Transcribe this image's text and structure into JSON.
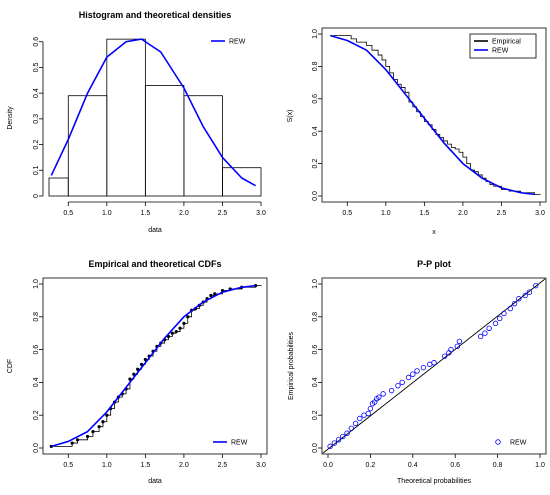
{
  "colors": {
    "theory": "#0000ff",
    "empirical": "#000000",
    "background": "#ffffff"
  },
  "chart_data": [
    {
      "type": "bar",
      "title": "Histogram and theoretical densities",
      "xlabel": "data",
      "ylabel": "Density",
      "xlim": [
        0.25,
        3.0
      ],
      "ylim": [
        0,
        0.63
      ],
      "xticks": [
        "0.5",
        "1.0",
        "1.5",
        "2.0",
        "2.5",
        "3.0"
      ],
      "yticks": [
        "0",
        "0.1",
        "0.2",
        "0.3",
        "0.4",
        "0.5",
        "0.6"
      ],
      "bins": [
        {
          "from": 0.25,
          "to": 0.5,
          "density": 0.07
        },
        {
          "from": 0.5,
          "to": 1.0,
          "density": 0.39
        },
        {
          "from": 1.0,
          "to": 1.5,
          "density": 0.61
        },
        {
          "from": 1.5,
          "to": 2.0,
          "density": 0.43
        },
        {
          "from": 2.0,
          "to": 2.5,
          "density": 0.39
        },
        {
          "from": 2.5,
          "to": 3.0,
          "density": 0.11
        }
      ],
      "series": [
        {
          "name": "REW",
          "x": [
            0.28,
            0.5,
            0.75,
            1.0,
            1.25,
            1.45,
            1.7,
            2.0,
            2.25,
            2.5,
            2.75,
            2.93
          ],
          "y": [
            0.08,
            0.22,
            0.4,
            0.54,
            0.6,
            0.61,
            0.56,
            0.42,
            0.27,
            0.15,
            0.07,
            0.04
          ]
        }
      ],
      "legend": "top-right",
      "legend_entries": [
        {
          "label": "REW",
          "color": "#0000ff"
        }
      ]
    },
    {
      "type": "line",
      "title": "",
      "xlabel": "x",
      "ylabel": "S(x)",
      "xlim": [
        0.25,
        3.0
      ],
      "ylim": [
        0,
        1.0
      ],
      "xticks": [
        "0.5",
        "1.0",
        "1.5",
        "2.0",
        "2.5",
        "3.0"
      ],
      "yticks": [
        "0.0",
        "0.2",
        "0.4",
        "0.6",
        "0.8",
        "1.0"
      ],
      "series": [
        {
          "name": "Empirical",
          "style": "step",
          "x": [
            0.28,
            0.55,
            0.62,
            0.75,
            0.82,
            0.9,
            0.95,
            1.0,
            1.05,
            1.1,
            1.15,
            1.2,
            1.25,
            1.3,
            1.35,
            1.4,
            1.45,
            1.5,
            1.55,
            1.6,
            1.65,
            1.7,
            1.75,
            1.8,
            1.85,
            1.9,
            1.95,
            2.0,
            2.05,
            2.1,
            2.15,
            2.2,
            2.25,
            2.3,
            2.35,
            2.4,
            2.5,
            2.6,
            2.75,
            2.93
          ],
          "y": [
            0.99,
            0.97,
            0.95,
            0.93,
            0.9,
            0.87,
            0.84,
            0.8,
            0.76,
            0.72,
            0.69,
            0.67,
            0.64,
            0.58,
            0.55,
            0.52,
            0.49,
            0.46,
            0.44,
            0.41,
            0.38,
            0.36,
            0.34,
            0.32,
            0.3,
            0.29,
            0.27,
            0.24,
            0.2,
            0.16,
            0.15,
            0.13,
            0.11,
            0.09,
            0.07,
            0.06,
            0.04,
            0.03,
            0.02,
            0.01
          ]
        },
        {
          "name": "REW",
          "style": "line",
          "x": [
            0.28,
            0.5,
            0.75,
            1.0,
            1.25,
            1.5,
            1.75,
            2.0,
            2.25,
            2.5,
            2.75,
            2.93
          ],
          "y": [
            0.99,
            0.96,
            0.9,
            0.78,
            0.63,
            0.48,
            0.33,
            0.2,
            0.11,
            0.05,
            0.02,
            0.01
          ]
        }
      ],
      "legend": "top-right",
      "legend_entries": [
        {
          "label": "Empirical",
          "color": "#000000"
        },
        {
          "label": "REW",
          "color": "#0000ff"
        }
      ]
    },
    {
      "type": "line",
      "title": "Empirical and theoretical CDFs",
      "xlabel": "data",
      "ylabel": "CDF",
      "xlim": [
        0.25,
        3.0
      ],
      "ylim": [
        0,
        1.0
      ],
      "xticks": [
        "0.5",
        "1.0",
        "1.5",
        "2.0",
        "2.5",
        "3.0"
      ],
      "yticks": [
        "0.0",
        "0.2",
        "0.4",
        "0.6",
        "0.8",
        "1.0"
      ],
      "series": [
        {
          "name": "Empirical",
          "style": "step-points",
          "x": [
            0.28,
            0.55,
            0.62,
            0.75,
            0.82,
            0.9,
            0.95,
            1.0,
            1.05,
            1.1,
            1.15,
            1.2,
            1.25,
            1.3,
            1.35,
            1.4,
            1.45,
            1.5,
            1.55,
            1.6,
            1.65,
            1.7,
            1.75,
            1.8,
            1.85,
            1.9,
            1.95,
            2.0,
            2.05,
            2.1,
            2.15,
            2.2,
            2.25,
            2.3,
            2.35,
            2.4,
            2.5,
            2.6,
            2.75,
            2.93
          ],
          "y": [
            0.01,
            0.03,
            0.05,
            0.07,
            0.1,
            0.13,
            0.16,
            0.2,
            0.24,
            0.28,
            0.31,
            0.33,
            0.36,
            0.42,
            0.45,
            0.48,
            0.51,
            0.54,
            0.56,
            0.59,
            0.62,
            0.64,
            0.66,
            0.68,
            0.7,
            0.71,
            0.73,
            0.76,
            0.8,
            0.84,
            0.85,
            0.87,
            0.89,
            0.91,
            0.93,
            0.94,
            0.96,
            0.97,
            0.98,
            0.99
          ]
        },
        {
          "name": "REW",
          "style": "line",
          "x": [
            0.28,
            0.5,
            0.75,
            1.0,
            1.25,
            1.5,
            1.75,
            2.0,
            2.25,
            2.5,
            2.75,
            2.93
          ],
          "y": [
            0.01,
            0.04,
            0.1,
            0.22,
            0.37,
            0.52,
            0.67,
            0.8,
            0.89,
            0.95,
            0.98,
            0.99
          ]
        }
      ],
      "legend": "bottom-right",
      "legend_entries": [
        {
          "label": "REW",
          "color": "#0000ff"
        }
      ]
    },
    {
      "type": "scatter",
      "title": "P-P plot",
      "xlabel": "Theoretical probabilities",
      "ylabel": "Empirical probabilities",
      "xlim": [
        0,
        1.0
      ],
      "ylim": [
        0,
        1.0
      ],
      "xticks": [
        "0.0",
        "0.2",
        "0.4",
        "0.6",
        "0.8",
        "1.0"
      ],
      "yticks": [
        "0.0",
        "0.2",
        "0.4",
        "0.6",
        "0.8",
        "1.0"
      ],
      "reference_line": [
        [
          0,
          0
        ],
        [
          1,
          1
        ]
      ],
      "series": [
        {
          "name": "REW",
          "x": [
            0.01,
            0.03,
            0.05,
            0.07,
            0.09,
            0.11,
            0.13,
            0.15,
            0.17,
            0.19,
            0.2,
            0.21,
            0.22,
            0.23,
            0.24,
            0.26,
            0.3,
            0.33,
            0.35,
            0.38,
            0.4,
            0.42,
            0.45,
            0.48,
            0.5,
            0.55,
            0.57,
            0.58,
            0.61,
            0.62,
            0.72,
            0.74,
            0.76,
            0.79,
            0.81,
            0.83,
            0.86,
            0.88,
            0.9,
            0.93,
            0.95,
            0.98
          ],
          "y": [
            0.01,
            0.03,
            0.05,
            0.07,
            0.09,
            0.12,
            0.15,
            0.18,
            0.2,
            0.21,
            0.24,
            0.27,
            0.28,
            0.3,
            0.31,
            0.33,
            0.35,
            0.38,
            0.4,
            0.43,
            0.45,
            0.47,
            0.49,
            0.51,
            0.52,
            0.56,
            0.58,
            0.6,
            0.62,
            0.65,
            0.68,
            0.7,
            0.73,
            0.76,
            0.79,
            0.82,
            0.85,
            0.88,
            0.91,
            0.93,
            0.95,
            0.99
          ]
        }
      ],
      "legend": "bottom-right",
      "legend_entries": [
        {
          "label": "REW",
          "color": "#0000ff"
        }
      ]
    }
  ]
}
